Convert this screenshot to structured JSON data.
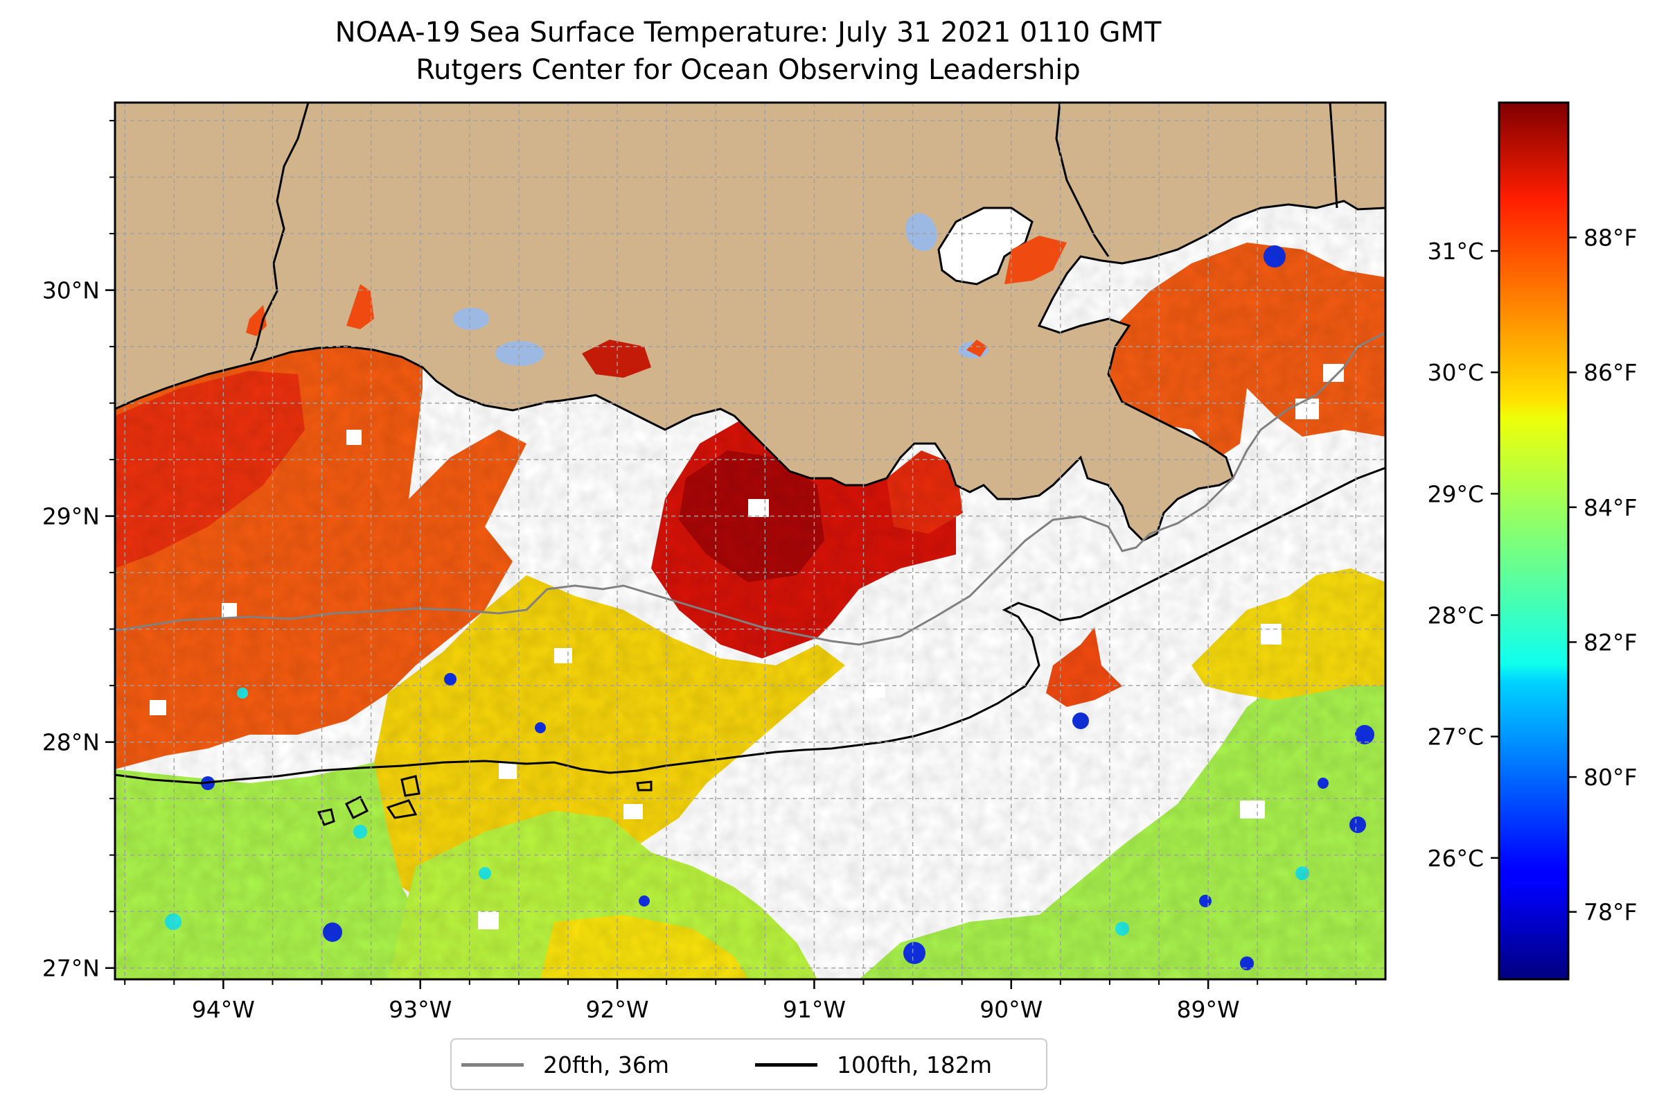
{
  "title": {
    "line1": "NOAA-19 Sea Surface Temperature: July 31 2021 0110 GMT",
    "line2": "Rutgers Center for Ocean Observing Leadership"
  },
  "map": {
    "lon_range": [
      -94.55,
      -88.1
    ],
    "lat_range": [
      26.95,
      30.83
    ],
    "x_ticks": [
      {
        "value": -94,
        "label": "94°W"
      },
      {
        "value": -93,
        "label": "93°W"
      },
      {
        "value": -92,
        "label": "92°W"
      },
      {
        "value": -91,
        "label": "91°W"
      },
      {
        "value": -90,
        "label": "90°W"
      },
      {
        "value": -89,
        "label": "89°W"
      }
    ],
    "y_ticks": [
      {
        "value": 27,
        "label": "27°N"
      },
      {
        "value": 28,
        "label": "28°N"
      },
      {
        "value": 29,
        "label": "29°N"
      },
      {
        "value": 30,
        "label": "30°N"
      }
    ],
    "grid": "dashed gray",
    "colors": {
      "land": "#d2b48c",
      "lakes": "#9cb9e4",
      "ocean_no_data": "#ffffff"
    }
  },
  "colorbar": {
    "colormap": "jet",
    "range_f": [
      77,
      90
    ],
    "f_ticks": [
      {
        "value": 78,
        "label": "78°F"
      },
      {
        "value": 80,
        "label": "80°F"
      },
      {
        "value": 82,
        "label": "82°F"
      },
      {
        "value": 84,
        "label": "84°F"
      },
      {
        "value": 86,
        "label": "86°F"
      },
      {
        "value": 88,
        "label": "88°F"
      }
    ],
    "c_ticks": [
      {
        "value": 26,
        "label": "26°C"
      },
      {
        "value": 27,
        "label": "27°C"
      },
      {
        "value": 28,
        "label": "28°C"
      },
      {
        "value": 29,
        "label": "29°C"
      },
      {
        "value": 30,
        "label": "30°C"
      },
      {
        "value": 31,
        "label": "31°C"
      }
    ]
  },
  "legend": {
    "items": [
      {
        "label": "20fth, 36m",
        "color": "#808080"
      },
      {
        "label": "100fth, 182m",
        "color": "#000000"
      }
    ]
  }
}
